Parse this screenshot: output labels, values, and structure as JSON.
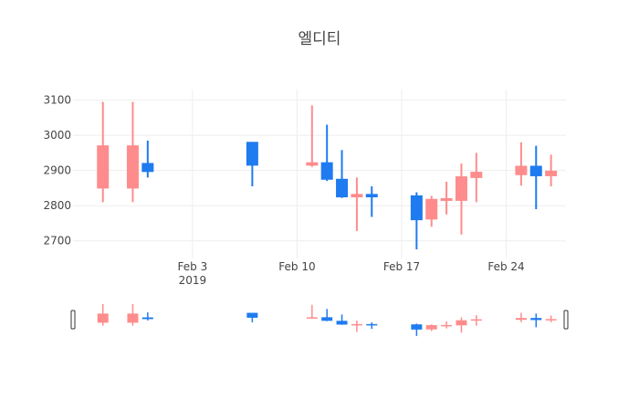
{
  "chart_data": {
    "type": "candlestick",
    "title": "엘디티",
    "xlabel": "",
    "ylabel": "",
    "ylim": [
      2650,
      3130
    ],
    "x_range": [
      "2019-01-26",
      "2019-02-28"
    ],
    "x_ticks": [
      {
        "date": "2019-02-03",
        "label": "Feb 3",
        "sublabel": "2019"
      },
      {
        "date": "2019-02-10",
        "label": "Feb 10",
        "sublabel": ""
      },
      {
        "date": "2019-02-17",
        "label": "Feb 17",
        "sublabel": ""
      },
      {
        "date": "2019-02-24",
        "label": "Feb 24",
        "sublabel": ""
      }
    ],
    "y_ticks": [
      2700,
      2800,
      2900,
      3000,
      3100
    ],
    "grid": true,
    "rangeslider": true,
    "colors": {
      "increasing": "#ff8c8c",
      "decreasing": "#1f7bf0"
    },
    "candles": [
      {
        "date": "2019-01-28",
        "open": 2850,
        "high": 3095,
        "low": 2810,
        "close": 2970
      },
      {
        "date": "2019-01-30",
        "open": 2850,
        "high": 3095,
        "low": 2810,
        "close": 2970
      },
      {
        "date": "2019-01-31",
        "open": 2920,
        "high": 2985,
        "low": 2880,
        "close": 2897
      },
      {
        "date": "2019-02-07",
        "open": 2980,
        "high": 2980,
        "low": 2855,
        "close": 2915
      },
      {
        "date": "2019-02-11",
        "open": 2915,
        "high": 3085,
        "low": 2910,
        "close": 2922
      },
      {
        "date": "2019-02-12",
        "open": 2922,
        "high": 3030,
        "low": 2870,
        "close": 2875
      },
      {
        "date": "2019-02-13",
        "open": 2875,
        "high": 2958,
        "low": 2822,
        "close": 2825
      },
      {
        "date": "2019-02-14",
        "open": 2825,
        "high": 2880,
        "low": 2728,
        "close": 2832
      },
      {
        "date": "2019-02-15",
        "open": 2832,
        "high": 2855,
        "low": 2768,
        "close": 2825
      },
      {
        "date": "2019-02-18",
        "open": 2828,
        "high": 2838,
        "low": 2676,
        "close": 2760
      },
      {
        "date": "2019-02-19",
        "open": 2762,
        "high": 2828,
        "low": 2740,
        "close": 2818
      },
      {
        "date": "2019-02-20",
        "open": 2815,
        "high": 2868,
        "low": 2775,
        "close": 2820
      },
      {
        "date": "2019-02-21",
        "open": 2815,
        "high": 2920,
        "low": 2718,
        "close": 2882
      },
      {
        "date": "2019-02-22",
        "open": 2880,
        "high": 2950,
        "low": 2810,
        "close": 2895
      },
      {
        "date": "2019-02-25",
        "open": 2888,
        "high": 2980,
        "low": 2857,
        "close": 2912
      },
      {
        "date": "2019-02-26",
        "open": 2912,
        "high": 2970,
        "low": 2790,
        "close": 2885
      },
      {
        "date": "2019-02-27",
        "open": 2885,
        "high": 2945,
        "low": 2855,
        "close": 2898
      }
    ]
  }
}
